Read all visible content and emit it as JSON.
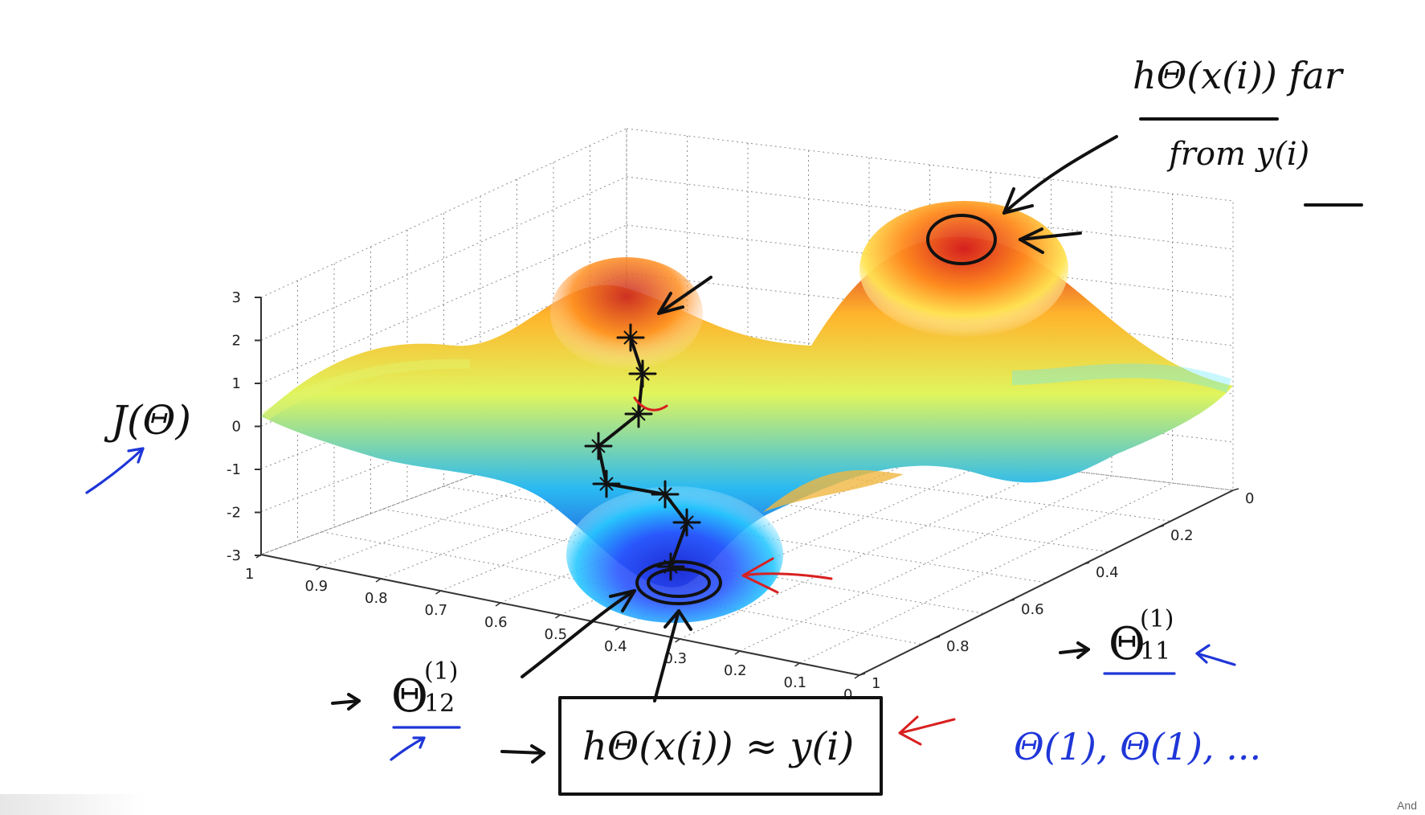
{
  "figure": {
    "surface_colors": {
      "low": "#1e2bd2",
      "mid_low": "#25b8f2",
      "mid": "#dff55a",
      "high": "#ffb228",
      "peak": "#d51f1f"
    },
    "z_ticks": [
      "3",
      "2",
      "1",
      "0",
      "-1",
      "-2",
      "-3"
    ],
    "left_axis_ticks": [
      "1",
      "0.9",
      "0.8",
      "0.7",
      "0.6",
      "0.5",
      "0.4",
      "0.3",
      "0.2",
      "0.1",
      "0"
    ],
    "right_axis_ticks": [
      "0",
      "0.2",
      "0.4",
      "0.6",
      "0.8",
      "1"
    ],
    "labels": {
      "cost": "J(Θ)",
      "theta12": "Θ",
      "theta12_sup": "(1)",
      "theta12_sub": "12",
      "theta11": "Θ",
      "theta11_sup": "(1)",
      "theta11_sub": "11"
    },
    "annotations": {
      "top_note_line1": "hΘ(x(i))  far",
      "top_note_line2": "from  y(i)",
      "bottom_box": "hΘ(x(i)) ≈ y(i)",
      "blue_sequence": "Θ(1), Θ(1), ..."
    },
    "footer": {
      "corner_text": "And"
    }
  }
}
